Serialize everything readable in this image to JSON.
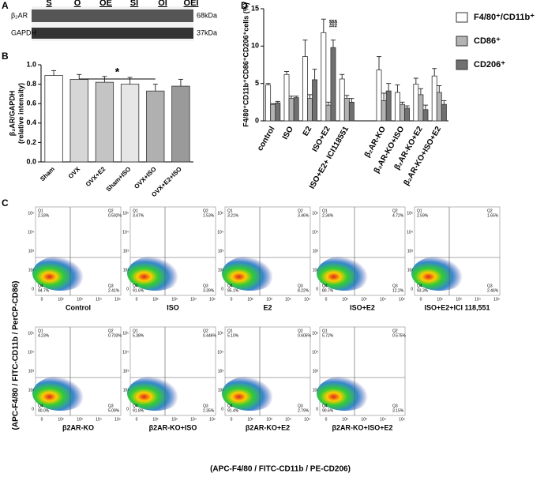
{
  "panels": [
    "A",
    "B",
    "C",
    "D"
  ],
  "blot": {
    "lanes": [
      "S",
      "O",
      "OE",
      "SI",
      "OI",
      "OEI"
    ],
    "rows": [
      "β₂AR",
      "GAPDH"
    ],
    "sizes": [
      "68kDa",
      "37kDa"
    ]
  },
  "chart_data": [
    {
      "type": "bar",
      "ylabel": [
        "β₂AR/GAPDH",
        "(relative intensity)"
      ],
      "categories": [
        "Sham",
        "OVX",
        "OVX+E2",
        "Sham+ISO",
        "OVX+ISO",
        "OVX+E2+ISO"
      ],
      "values": [
        0.89,
        0.85,
        0.82,
        0.8,
        0.73,
        0.78
      ],
      "errors": [
        0.05,
        0.05,
        0.06,
        0.07,
        0.07,
        0.07
      ],
      "colors": [
        "#ffffff",
        "#d6d6d6",
        "#c4c4c4",
        "#e6e6e6",
        "#b0b0b0",
        "#9a9a9a"
      ],
      "ylim": [
        0,
        1.0
      ],
      "yticks": [
        {
          "value": 0,
          "label": "0.0"
        },
        0.2,
        0.4,
        0.6,
        0.8,
        {
          "value": 1.0,
          "label": "1.0"
        }
      ],
      "annotations": [
        "*"
      ]
    },
    {
      "type": "bar",
      "ylabel": "F4/80⁺CD11b⁺CD86⁺CD206⁺cells (%)",
      "categories": [
        "control",
        "ISO",
        "E2",
        "ISO+E2",
        "ISO+E2+ ICI118551",
        null,
        "β₂AR-KO",
        "β₂AR-KO+ISO",
        "β₂AR-KO+E2",
        "β₂AR-KO+ISO+E2"
      ],
      "series": [
        {
          "name": "F4/80⁺/CD11b⁺",
          "color": "#ffffff",
          "values": [
            4.8,
            6.2,
            8.6,
            11.8,
            5.6,
            null,
            6.8,
            3.8,
            4.9,
            6.0
          ],
          "errors": [
            0.2,
            0.4,
            2.2,
            1.8,
            0.6,
            null,
            1.8,
            1.0,
            0.8,
            1.0
          ]
        },
        {
          "name": "CD86⁺",
          "color": "#b3b3b3",
          "values": [
            2.2,
            3.0,
            3.0,
            2.1,
            3.0,
            null,
            2.7,
            2.2,
            3.5,
            3.8
          ],
          "errors": [
            0.1,
            0.3,
            0.5,
            0.4,
            0.4,
            null,
            1.0,
            0.3,
            0.8,
            0.9
          ]
        },
        {
          "name": "CD206⁺",
          "color": "#707070",
          "values": [
            2.4,
            3.1,
            5.5,
            9.8,
            2.5,
            null,
            4.0,
            1.7,
            1.5,
            2.2
          ],
          "errors": [
            0.2,
            0.2,
            1.4,
            1.0,
            0.5,
            null,
            1.0,
            0.3,
            0.6,
            0.5
          ]
        }
      ],
      "ylim": [
        0,
        15
      ],
      "yticks": [
        0,
        5,
        10,
        15
      ],
      "annotations": [
        "$$$",
        "###"
      ]
    }
  ],
  "flow": {
    "quadrants": [
      "Q1",
      "Q2",
      "Q3",
      "Q4"
    ],
    "xticks": [
      "0",
      "10²",
      "10³",
      "10⁴",
      "10⁵"
    ],
    "yticks": [
      "10⁵",
      "10⁴",
      "10³",
      "10²",
      "0"
    ],
    "y_label": "(APC-F4/80 / FITC-CD11b / PerCP-CD86)",
    "x_label": "(APC-F4/80 / FITC-CD11b / PE-CD206)",
    "plots": [
      {
        "label": "Control",
        "q1": "2.33%",
        "q2": "0.592%",
        "q3": "2.41%",
        "q4": "94.7%"
      },
      {
        "label": "ISO",
        "q1": "3.47%",
        "q2": "1.53%",
        "q3": "3.39%",
        "q4": "91.6%"
      },
      {
        "label": "E2",
        "q1": "3.21%",
        "q2": "3.46%",
        "q3": "8.22%",
        "q4": "85.1%"
      },
      {
        "label": "ISO+E2",
        "q1": "2.34%",
        "q2": "4.72%",
        "q3": "12.2%",
        "q4": "80.7%"
      },
      {
        "label": "ISO+E2+ICI 118,551",
        "q1": "2.59%",
        "q2": "1.65%",
        "q3": "2.46%",
        "q4": "93.3%"
      },
      {
        "label": "β2AR-KO",
        "q1": "4.23%",
        "q2": "0.703%",
        "q3": "5.09%",
        "q4": "90.0%"
      },
      {
        "label": "β2AR-KO+ISO",
        "q1": "5.38%",
        "q2": "0.446%",
        "q3": "2.35%",
        "q4": "91.8%"
      },
      {
        "label": "β2AR-KO+E2",
        "q1": "5.10%",
        "q2": "0.605%",
        "q3": "2.79%",
        "q4": "91.4%"
      },
      {
        "label": "β2AR-KO+ISO+E2",
        "q1": "5.72%",
        "q2": "0.575%",
        "q3": "3.15%",
        "q4": "90.6%"
      }
    ]
  }
}
